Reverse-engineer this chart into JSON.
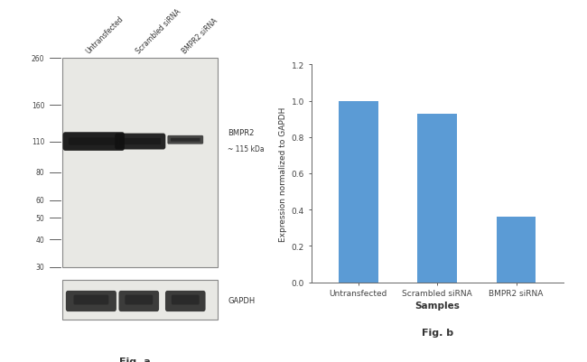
{
  "fig_a": {
    "sample_labels": [
      "Untransfected",
      "Scrambled siRNA",
      "BMPR2 siRNA"
    ],
    "band_markers": [
      260,
      160,
      110,
      80,
      60,
      50,
      40,
      30
    ],
    "band_label_line1": "BMPR2",
    "band_label_line2": "~ 115 kDa",
    "gapdh_label": "GAPDH",
    "fig_label": "Fig. a",
    "gel_color": "#e8e8e4",
    "band_color": "#111111",
    "marker_label_color": "#444444"
  },
  "fig_b": {
    "categories": [
      "Untransfected",
      "Scrambled siRNA",
      "BMPR2 siRNA"
    ],
    "values": [
      1.0,
      0.93,
      0.36
    ],
    "bar_color": "#5b9bd5",
    "ylabel": "Expression normalized to GAPDH",
    "xlabel": "Samples",
    "ylim": [
      0,
      1.2
    ],
    "yticks": [
      0,
      0.2,
      0.4,
      0.6,
      0.8,
      1.0,
      1.2
    ],
    "fig_label": "Fig. b"
  }
}
